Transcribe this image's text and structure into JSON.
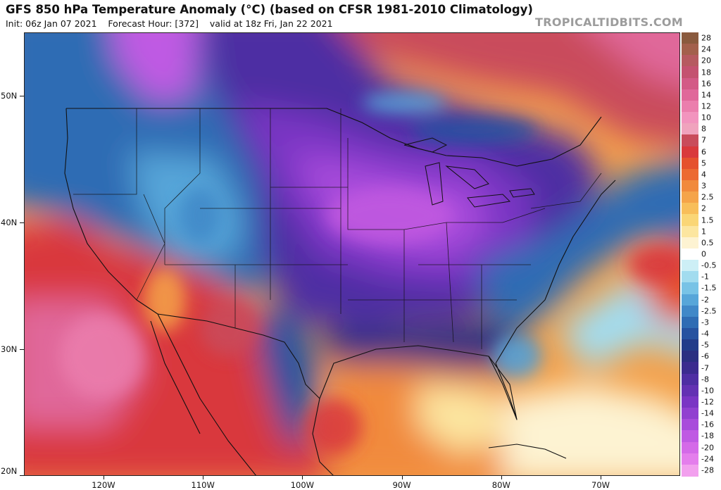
{
  "header": {
    "title": "GFS 850 hPa Temperature Anomaly (°C) (based on CFSR 1981-2010 Climatology)",
    "subtitle": "Init: 06z Jan 07 2021    Forecast Hour: [372]    valid at 18z Fri, Jan 22 2021",
    "brand": "TROPICALTIDBITS.COM"
  },
  "map": {
    "lat_labels": [
      "50N",
      "40N",
      "30N",
      "20N"
    ],
    "lon_labels": [
      "120W",
      "110W",
      "100W",
      "90W",
      "80W",
      "70W"
    ],
    "lat_values": [
      50,
      40,
      30,
      20
    ],
    "lon_values": [
      -120,
      -110,
      -100,
      -90,
      -80,
      -70
    ],
    "extent": {
      "west": -128,
      "east": -62,
      "south": 20,
      "north": 55
    }
  },
  "colorbar": {
    "labels": [
      "28",
      "24",
      "20",
      "18",
      "16",
      "14",
      "12",
      "10",
      "8",
      "7",
      "6",
      "5",
      "4",
      "3",
      "2.5",
      "2",
      "1.5",
      "1",
      "0.5",
      "0",
      "-0.5",
      "-1",
      "-1.5",
      "-2",
      "-2.5",
      "-3",
      "-4",
      "-5",
      "-6",
      "-7",
      "-8",
      "-10",
      "-12",
      "-14",
      "-16",
      "-18",
      "-20",
      "-24",
      "-28"
    ],
    "colors": [
      "#8a5a3e",
      "#a3604c",
      "#b65a60",
      "#c45270",
      "#d35a86",
      "#e0689a",
      "#eb7ead",
      "#f294be",
      "#f0a3bd",
      "#c94c5b",
      "#d9393c",
      "#e5512e",
      "#ec6a32",
      "#f18a3c",
      "#f5a449",
      "#f8be5a",
      "#fad676",
      "#fce6a0",
      "#fdf3d2",
      "#ffffff",
      "#cdeff6",
      "#a2dcef",
      "#78c3e6",
      "#57a6d9",
      "#4088c8",
      "#2f6cb4",
      "#2652a0",
      "#223c8a",
      "#2b2f82",
      "#3b2b8f",
      "#4e2ea3",
      "#6331b3",
      "#7a35c4",
      "#9140d0",
      "#a84cdb",
      "#bf5ae3",
      "#d46ae8",
      "#e47eec",
      "#f2a0ee"
    ]
  },
  "colors": {
    "ocean_warm": "#d9393c",
    "cold_core": "#7a35c4",
    "cold_mid": "#2f6cb4",
    "border_lines": "#111111"
  }
}
